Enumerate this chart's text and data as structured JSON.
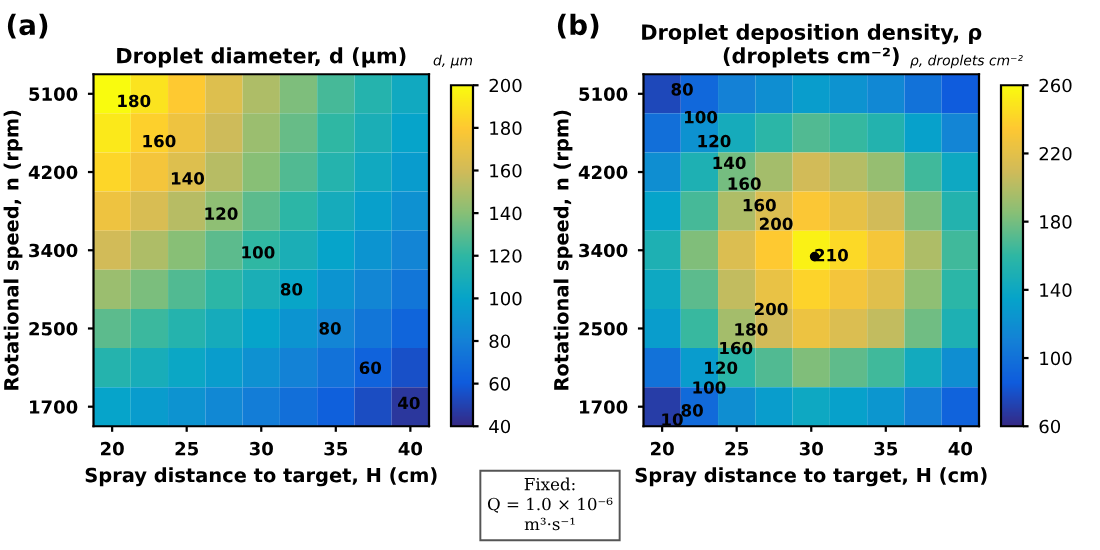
{
  "chart_data": [
    {
      "type": "heatmap",
      "title": "Droplet diameter, d (μm)",
      "xlabel": "Spray distance to target, H (cm)",
      "ylabel": "Rotational speed, n (rpm)",
      "clabel": "d, μm",
      "categories": [
        "20",
        null,
        "25",
        null,
        "30",
        null,
        "35",
        null,
        "40"
      ],
      "y_categories": [
        "5100",
        null,
        "4200",
        null,
        "3400",
        null,
        "2500",
        null,
        "1700"
      ],
      "cells": [
        [
          200,
          190,
          180,
          165,
          150,
          138,
          125,
          115,
          105
        ],
        [
          193,
          183,
          173,
          159,
          145,
          133,
          120,
          110,
          100
        ],
        [
          185,
          175,
          165,
          153,
          140,
          128,
          115,
          105,
          95
        ],
        [
          173,
          163,
          153,
          142,
          130,
          119,
          108,
          98,
          89
        ],
        [
          160,
          150,
          140,
          130,
          120,
          110,
          100,
          91,
          82
        ],
        [
          145,
          137,
          128,
          119,
          110,
          101,
          91,
          83,
          74
        ],
        [
          130,
          123,
          115,
          108,
          100,
          91,
          82,
          74,
          65
        ],
        [
          115,
          109,
          103,
          96,
          89,
          81,
          72,
          64,
          55
        ],
        [
          100,
          95,
          90,
          84,
          78,
          70,
          62,
          54,
          45
        ]
      ],
      "clim": [
        40,
        200
      ],
      "cticks": [
        40,
        60,
        80,
        100,
        120,
        140,
        160,
        180,
        200
      ],
      "annotations": [
        "(a)",
        "180",
        "160",
        "140",
        "120",
        "100",
        "80",
        "80",
        "60",
        "40",
        "Fixed:\nQ = 1.0 × 10⁻⁶\nm³·s⁻¹"
      ]
    },
    {
      "type": "heatmap",
      "title": "Droplet deposition density, ρ\n(droplets cm⁻²)",
      "xlabel": "Spray distance to target, H (cm)",
      "ylabel": "Rotational speed, n (rpm)",
      "clabel": "ρ, droplets cm⁻²",
      "categories": [
        "20",
        null,
        "25",
        null,
        "30",
        null,
        "35",
        null,
        "40"
      ],
      "y_categories": [
        "5100",
        null,
        "4200",
        null,
        "3400",
        null,
        "2500",
        null,
        "1700"
      ],
      "cells": [
        [
          75,
          93,
          110,
          120,
          130,
          123,
          115,
          100,
          85
        ],
        [
          98,
          122,
          145,
          158,
          170,
          162,
          153,
          133,
          113
        ],
        [
          120,
          150,
          180,
          195,
          210,
          200,
          190,
          165,
          140
        ],
        [
          135,
          167,
          198,
          215,
          233,
          222,
          210,
          182,
          153
        ],
        [
          150,
          183,
          215,
          235,
          255,
          243,
          230,
          198,
          165
        ],
        [
          140,
          173,
          205,
          223,
          240,
          229,
          218,
          188,
          158
        ],
        [
          130,
          163,
          195,
          210,
          225,
          215,
          205,
          178,
          150
        ],
        [
          100,
          129,
          158,
          170,
          183,
          174,
          165,
          143,
          120
        ],
        [
          70,
          95,
          120,
          130,
          140,
          133,
          125,
          108,
          90
        ]
      ],
      "clim": [
        60,
        260
      ],
      "cticks": [
        60,
        100,
        140,
        180,
        220,
        260
      ],
      "annotations": [
        "(b)",
        "80",
        "100",
        "120",
        "140",
        "160",
        "160",
        "200",
        "210",
        "200",
        "180",
        "160",
        "120",
        "100",
        "80",
        "10"
      ]
    }
  ]
}
